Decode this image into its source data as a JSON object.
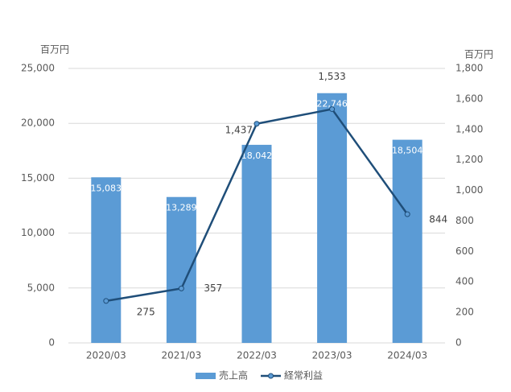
{
  "chart_data": {
    "type": "combo",
    "y_label": "百万円",
    "y2_label": "百万円",
    "categories": [
      "2020/03",
      "2021/03",
      "2022/03",
      "2023/03",
      "2024/03"
    ],
    "series": [
      {
        "name": "売上高",
        "type": "bar",
        "color": "#5b9bd5",
        "values": [
          15083,
          13289,
          18042,
          22746,
          18504
        ],
        "value_labels": [
          "15,083",
          "13,289",
          "18,042",
          "22,746",
          "18,504"
        ]
      },
      {
        "name": "経常利益",
        "type": "line",
        "axis": "y2",
        "color": "#1f4e79",
        "values": [
          275,
          357,
          1437,
          1533,
          844
        ],
        "value_labels": [
          "275",
          "357",
          "1,437",
          "1,533",
          "844"
        ]
      }
    ],
    "ylim": [
      0,
      25000
    ],
    "yticks": [
      0,
      {
        "value": 5000,
        "label": "5,000"
      },
      {
        "value": 10000,
        "label": "10,000"
      },
      {
        "value": 15000,
        "label": "15,000"
      },
      {
        "value": 20000,
        "label": "20,000"
      },
      {
        "value": 25000,
        "label": "25,000"
      }
    ],
    "y2lim": [
      0,
      1800
    ],
    "y2ticks": [
      0,
      200,
      400,
      600,
      800,
      {
        "value": 1000,
        "label": "1,000"
      },
      {
        "value": 1200,
        "label": "1,200"
      },
      {
        "value": 1400,
        "label": "1,400"
      },
      {
        "value": 1600,
        "label": "1,600"
      },
      {
        "value": 1800,
        "label": "1,800"
      }
    ],
    "grid": true,
    "legend": "bottom"
  }
}
